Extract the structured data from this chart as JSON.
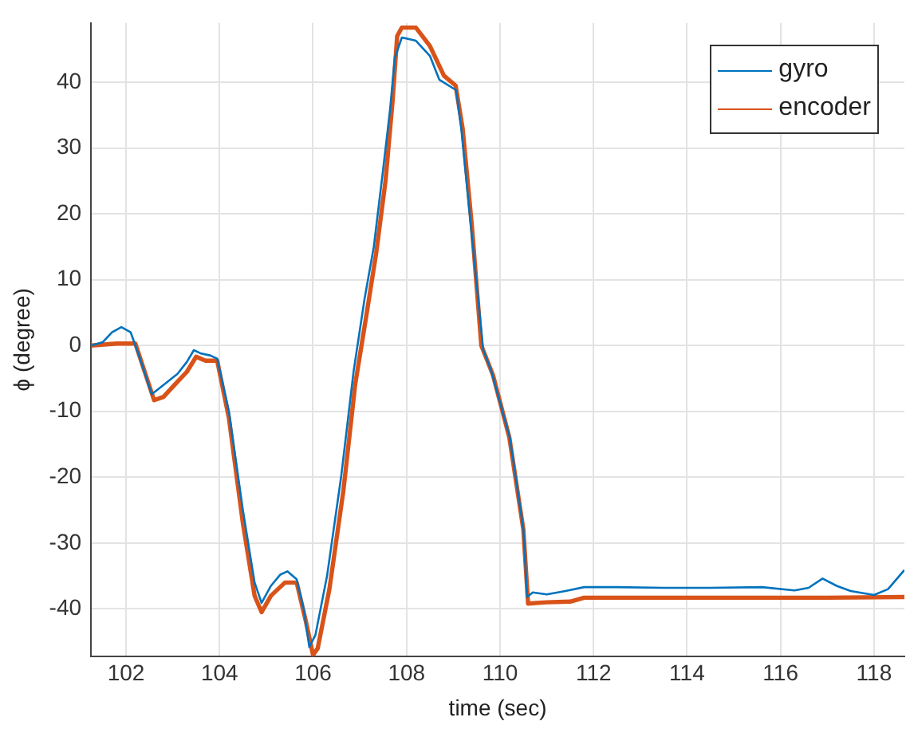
{
  "chart_data": {
    "type": "line",
    "xlabel": "time (sec)",
    "ylabel": "ϕ (degree)",
    "xlim": [
      101.25,
      118.65
    ],
    "ylim": [
      -47.2,
      49
    ],
    "xticks": [
      102,
      104,
      106,
      108,
      110,
      112,
      114,
      116,
      118
    ],
    "yticks": [
      -40,
      -30,
      -20,
      -10,
      0,
      10,
      20,
      30,
      40
    ],
    "grid": true,
    "legend": "top right",
    "marker": "none",
    "line_style": "solid",
    "series": [
      {
        "name": "gyro",
        "color": "#0072bd",
        "x": [
          101.25,
          101.5,
          101.7,
          101.9,
          102.1,
          102.3,
          102.55,
          102.8,
          103.1,
          103.3,
          103.45,
          103.6,
          103.8,
          103.95,
          104.2,
          104.5,
          104.75,
          104.9,
          105.1,
          105.3,
          105.45,
          105.65,
          105.8,
          105.92,
          106.05,
          106.3,
          106.6,
          106.87,
          107.1,
          107.3,
          107.5,
          107.65,
          107.75,
          107.9,
          108.2,
          108.5,
          108.7,
          109.06,
          109.17,
          109.35,
          109.64,
          109.81,
          110.21,
          110.5,
          110.58,
          110.7,
          111,
          111.4,
          111.8,
          112.5,
          113.5,
          114.5,
          115.6,
          116.3,
          116.6,
          116.9,
          117.2,
          117.5,
          118,
          118.3,
          118.65
        ],
        "values": [
          0,
          0.5,
          2,
          2.8,
          2,
          -2,
          -7.4,
          -6,
          -4.3,
          -2.5,
          -0.7,
          -1.2,
          -1.5,
          -2,
          -10,
          -25,
          -36,
          -39.1,
          -36.5,
          -34.8,
          -34.3,
          -35.5,
          -40,
          -45.8,
          -44,
          -35,
          -20,
          -3.8,
          7,
          15,
          26.8,
          36,
          43.7,
          46.8,
          46.3,
          44,
          40.4,
          38.8,
          33,
          20,
          -0.6,
          -3.8,
          -14,
          -27.9,
          -38.2,
          -37.5,
          -37.8,
          -37.3,
          -36.7,
          -36.7,
          -36.8,
          -36.8,
          -36.7,
          -37.2,
          -36.8,
          -35.4,
          -36.5,
          -37.3,
          -37.9,
          -37,
          -34.1
        ]
      },
      {
        "name": "encoder",
        "color": "#d95319",
        "x": [
          101.25,
          101.8,
          102.2,
          102.4,
          102.6,
          102.8,
          103.1,
          103.3,
          103.5,
          103.7,
          103.95,
          104.2,
          104.5,
          104.75,
          104.9,
          105.1,
          105.4,
          105.65,
          105.85,
          106,
          106.1,
          106.35,
          106.65,
          106.9,
          107.15,
          107.35,
          107.55,
          107.7,
          107.8,
          107.9,
          108.2,
          108.5,
          108.8,
          109.05,
          109.2,
          109.4,
          109.6,
          109.85,
          110.2,
          110.5,
          110.6,
          111,
          111.5,
          111.8,
          113,
          115,
          117,
          118.65
        ],
        "values": [
          0,
          0.3,
          0.3,
          -4,
          -8.3,
          -7.8,
          -5.5,
          -4,
          -1.7,
          -2.3,
          -2.3,
          -11,
          -27,
          -38,
          -40.5,
          -38,
          -36,
          -36,
          -42,
          -47,
          -46,
          -37,
          -22,
          -6,
          5,
          14,
          25,
          37,
          47,
          48.3,
          48.3,
          45.5,
          41,
          39.5,
          33,
          18,
          0,
          -4.5,
          -14,
          -28,
          -39.2,
          -39,
          -38.9,
          -38.3,
          -38.3,
          -38.3,
          -38.3,
          -38.2
        ]
      }
    ]
  }
}
